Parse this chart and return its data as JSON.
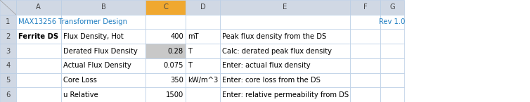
{
  "title_color": "#1F7EC2",
  "rev_color": "#1F7EC2",
  "header_bg": "#D0D8E4",
  "header_col_C_bg": "#F0A830",
  "col_C_calc_bg": "#C8C8C8",
  "grid_color": "#B8CCE4",
  "white": "#FFFFFF",
  "font_size": 7.2,
  "rows": [
    {
      "rn": "1",
      "a": "MAX13256 Transformer Design",
      "b": "",
      "c": "",
      "d": "",
      "efg": "Rev 1.0",
      "efg_col": "G",
      "a_bold": false,
      "a_color": "#1F7EC2"
    },
    {
      "rn": "2",
      "a": "Ferrite DS",
      "b": "Flux Density, Hot",
      "c": "400",
      "d": "mT",
      "efg": "Peak flux density from the DS",
      "efg_col": "E",
      "a_bold": true,
      "a_color": "#000000"
    },
    {
      "rn": "3",
      "a": "",
      "b": "Derated Flux Density",
      "c": "0.28",
      "d": "T",
      "efg": "Calc: derated peak flux density",
      "efg_col": "E",
      "a_bold": false,
      "a_color": "#000000"
    },
    {
      "rn": "4",
      "a": "",
      "b": "Actual Flux Density",
      "c": "0.075",
      "d": "T",
      "efg": "Enter: actual flux density",
      "efg_col": "E",
      "a_bold": false,
      "a_color": "#000000"
    },
    {
      "rn": "5",
      "a": "",
      "b": "Core Loss",
      "c": "350",
      "d": "kW/m^3",
      "efg": "Enter: core loss from the DS",
      "efg_col": "E",
      "a_bold": false,
      "a_color": "#000000"
    },
    {
      "rn": "6",
      "a": "",
      "b": "u Relative",
      "c": "1500",
      "d": "",
      "efg": "Enter: relative permeability from DS",
      "efg_col": "E",
      "a_bold": false,
      "a_color": "#000000"
    }
  ],
  "col_C_calc_rows": [
    2
  ],
  "cs": [
    0.0,
    0.03,
    0.115,
    0.275,
    0.35,
    0.415,
    0.66,
    0.718,
    0.762,
    1.0
  ]
}
